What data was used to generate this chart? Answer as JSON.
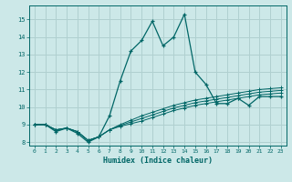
{
  "xlabel": "Humidex (Indice chaleur)",
  "bg_color": "#cce8e8",
  "grid_color": "#b0d0d0",
  "line_color": "#006666",
  "xlim": [
    -0.5,
    23.5
  ],
  "ylim": [
    7.8,
    15.8
  ],
  "xticks": [
    0,
    1,
    2,
    3,
    4,
    5,
    6,
    7,
    8,
    9,
    10,
    11,
    12,
    13,
    14,
    15,
    16,
    17,
    18,
    19,
    20,
    21,
    22,
    23
  ],
  "yticks": [
    8,
    9,
    10,
    11,
    12,
    13,
    14,
    15
  ],
  "series": [
    {
      "x": [
        0,
        1,
        2,
        3,
        4,
        5,
        6,
        7,
        8,
        9,
        10,
        11,
        12,
        13,
        14,
        15,
        16,
        17,
        18,
        19,
        20,
        21,
        22,
        23
      ],
      "y": [
        9.0,
        9.0,
        8.6,
        8.8,
        8.5,
        8.0,
        8.3,
        9.5,
        11.5,
        13.2,
        13.8,
        14.9,
        13.5,
        14.0,
        15.3,
        12.0,
        11.3,
        10.2,
        10.2,
        10.5,
        10.1,
        10.6,
        10.6,
        10.6
      ]
    },
    {
      "x": [
        0,
        1,
        2,
        3,
        4,
        5,
        6,
        7,
        8,
        9,
        10,
        11,
        12,
        13,
        14,
        15,
        16,
        17,
        18,
        19,
        20,
        21,
        22,
        23
      ],
      "y": [
        9.0,
        9.0,
        8.7,
        8.8,
        8.6,
        8.1,
        8.3,
        8.7,
        9.0,
        9.25,
        9.5,
        9.7,
        9.9,
        10.1,
        10.25,
        10.4,
        10.5,
        10.6,
        10.7,
        10.8,
        10.9,
        11.0,
        11.05,
        11.1
      ]
    },
    {
      "x": [
        0,
        1,
        2,
        3,
        4,
        5,
        6,
        7,
        8,
        9,
        10,
        11,
        12,
        13,
        14,
        15,
        16,
        17,
        18,
        19,
        20,
        21,
        22,
        23
      ],
      "y": [
        9.0,
        9.0,
        8.7,
        8.8,
        8.6,
        8.1,
        8.3,
        8.7,
        8.95,
        9.15,
        9.35,
        9.55,
        9.75,
        9.95,
        10.1,
        10.25,
        10.35,
        10.45,
        10.55,
        10.65,
        10.75,
        10.85,
        10.9,
        10.95
      ]
    },
    {
      "x": [
        0,
        1,
        2,
        3,
        4,
        5,
        6,
        7,
        8,
        9,
        10,
        11,
        12,
        13,
        14,
        15,
        16,
        17,
        18,
        19,
        20,
        21,
        22,
        23
      ],
      "y": [
        9.0,
        9.0,
        8.7,
        8.8,
        8.6,
        8.1,
        8.3,
        8.7,
        8.9,
        9.05,
        9.2,
        9.4,
        9.6,
        9.8,
        9.95,
        10.1,
        10.2,
        10.3,
        10.4,
        10.5,
        10.6,
        10.7,
        10.75,
        10.8
      ]
    }
  ]
}
